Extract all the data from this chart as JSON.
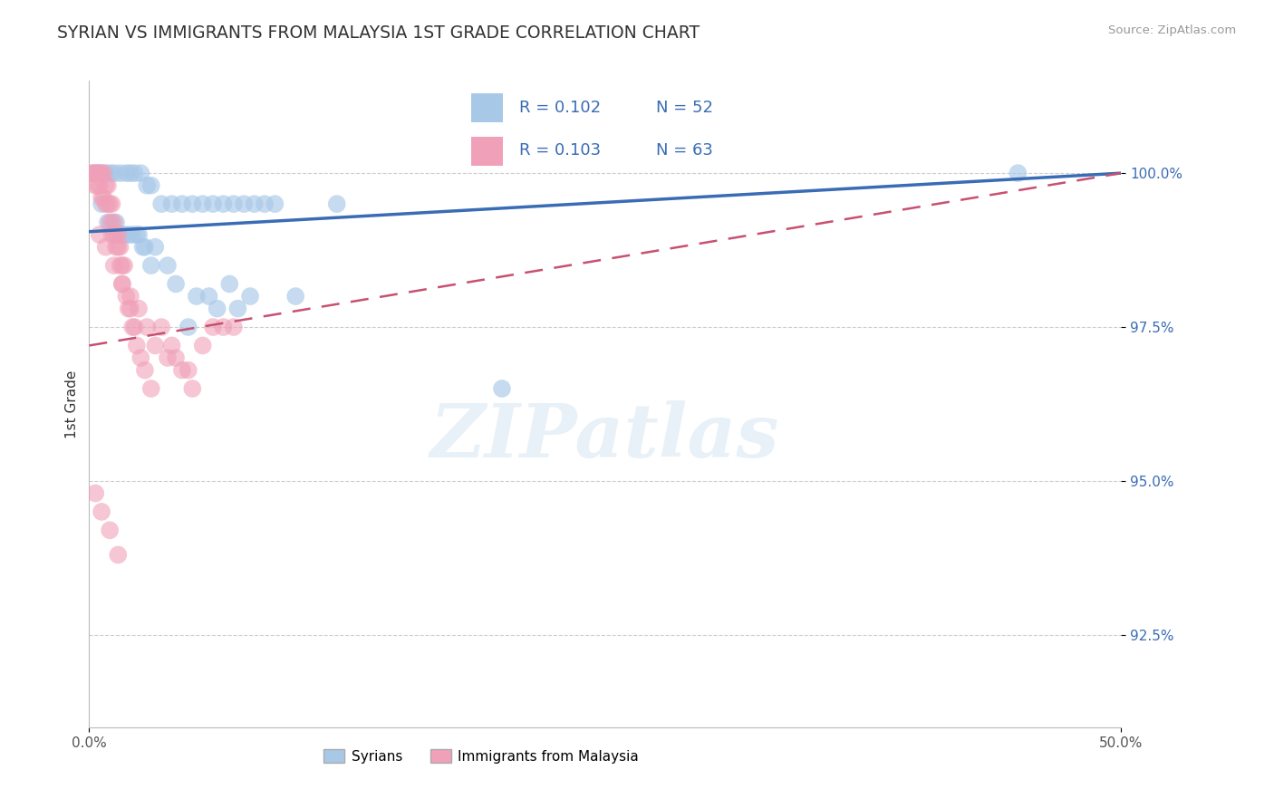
{
  "title": "SYRIAN VS IMMIGRANTS FROM MALAYSIA 1ST GRADE CORRELATION CHART",
  "source_text": "Source: ZipAtlas.com",
  "ylabel": "1st Grade",
  "xlim": [
    0.0,
    50.0
  ],
  "ylim": [
    91.0,
    101.5
  ],
  "yticks": [
    92.5,
    95.0,
    97.5,
    100.0
  ],
  "ytick_labels": [
    "92.5%",
    "95.0%",
    "97.5%",
    "100.0%"
  ],
  "xtick_labels": [
    "0.0%",
    "50.0%"
  ],
  "xtick_pos": [
    0.0,
    50.0
  ],
  "blue_color": "#A8C8E8",
  "pink_color": "#F0A0B8",
  "blue_line_color": "#3A6CB5",
  "pink_line_color": "#C85070",
  "legend_label1": "Syrians",
  "legend_label2": "Immigrants from Malaysia",
  "watermark": "ZIPatlas",
  "blue_scatter_x": [
    0.3,
    0.5,
    0.8,
    1.0,
    1.2,
    1.5,
    1.8,
    2.0,
    2.2,
    2.5,
    2.8,
    3.0,
    3.5,
    4.0,
    4.5,
    5.0,
    5.5,
    6.0,
    6.5,
    7.0,
    7.5,
    8.0,
    8.5,
    9.0,
    1.3,
    1.6,
    2.1,
    2.4,
    2.7,
    3.2,
    3.8,
    4.2,
    5.2,
    5.8,
    6.2,
    7.2,
    3.0,
    4.8,
    6.8,
    7.8,
    10.0,
    12.0,
    20.0,
    45.0,
    0.6,
    0.9,
    1.1,
    1.4,
    1.7,
    1.9,
    2.3,
    2.6
  ],
  "blue_scatter_y": [
    100.0,
    100.0,
    100.0,
    100.0,
    100.0,
    100.0,
    100.0,
    100.0,
    100.0,
    100.0,
    99.8,
    99.8,
    99.5,
    99.5,
    99.5,
    99.5,
    99.5,
    99.5,
    99.5,
    99.5,
    99.5,
    99.5,
    99.5,
    99.5,
    99.2,
    99.0,
    99.0,
    99.0,
    98.8,
    98.8,
    98.5,
    98.2,
    98.0,
    98.0,
    97.8,
    97.8,
    98.5,
    97.5,
    98.2,
    98.0,
    98.0,
    99.5,
    96.5,
    100.0,
    99.5,
    99.2,
    99.2,
    99.0,
    99.0,
    99.0,
    99.0,
    98.8
  ],
  "pink_scatter_x": [
    0.1,
    0.2,
    0.3,
    0.3,
    0.4,
    0.4,
    0.5,
    0.5,
    0.6,
    0.6,
    0.7,
    0.7,
    0.8,
    0.8,
    0.9,
    0.9,
    1.0,
    1.0,
    1.1,
    1.1,
    1.2,
    1.2,
    1.3,
    1.3,
    1.4,
    1.4,
    1.5,
    1.5,
    1.6,
    1.6,
    1.7,
    1.8,
    1.9,
    2.0,
    2.1,
    2.2,
    2.3,
    2.5,
    2.7,
    3.0,
    3.5,
    4.0,
    4.5,
    5.0,
    5.5,
    6.0,
    7.0,
    0.5,
    0.8,
    1.2,
    1.6,
    2.0,
    2.4,
    2.8,
    3.2,
    3.8,
    0.3,
    0.6,
    1.0,
    1.4,
    4.2,
    4.8,
    6.5
  ],
  "pink_scatter_y": [
    100.0,
    100.0,
    100.0,
    99.8,
    100.0,
    99.8,
    100.0,
    99.8,
    100.0,
    99.6,
    100.0,
    99.6,
    99.8,
    99.5,
    99.8,
    99.5,
    99.5,
    99.2,
    99.5,
    99.0,
    99.2,
    99.0,
    99.0,
    98.8,
    99.0,
    98.8,
    98.8,
    98.5,
    98.5,
    98.2,
    98.5,
    98.0,
    97.8,
    97.8,
    97.5,
    97.5,
    97.2,
    97.0,
    96.8,
    96.5,
    97.5,
    97.2,
    96.8,
    96.5,
    97.2,
    97.5,
    97.5,
    99.0,
    98.8,
    98.5,
    98.2,
    98.0,
    97.8,
    97.5,
    97.2,
    97.0,
    94.8,
    94.5,
    94.2,
    93.8,
    97.0,
    96.8,
    97.5
  ]
}
